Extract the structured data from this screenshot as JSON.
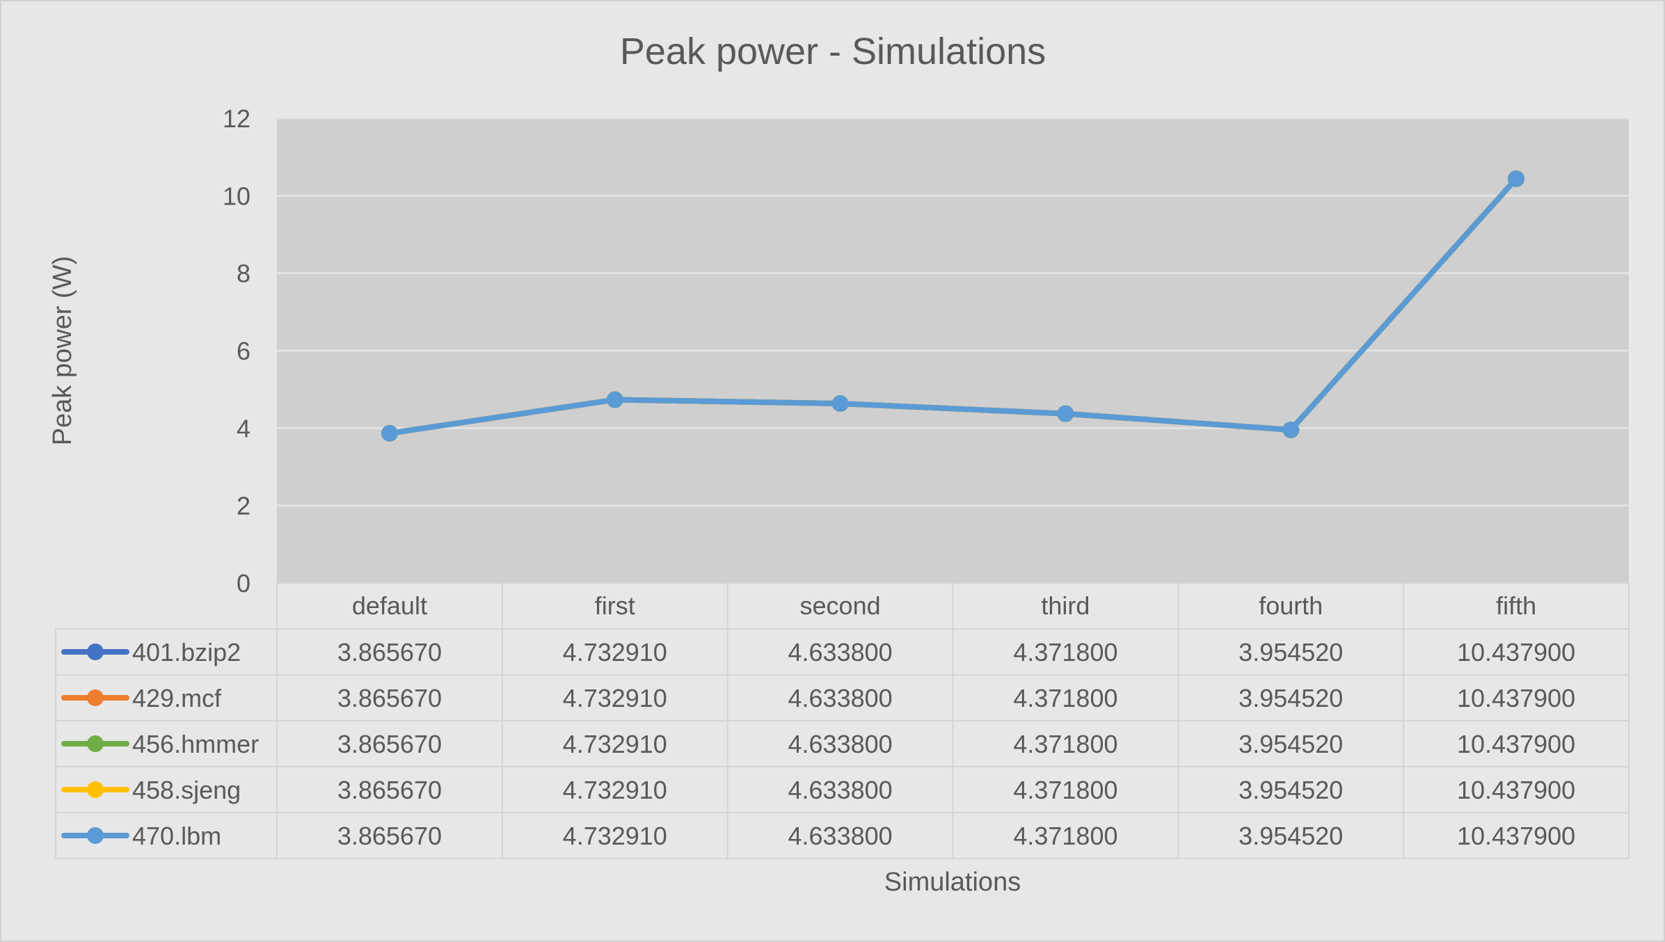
{
  "chart_data": {
    "type": "line",
    "title": "Peak power - Simulations",
    "xlabel": "Simulations",
    "ylabel": "Peak power (W)",
    "ylim": [
      0,
      12
    ],
    "yticks": [
      0,
      2,
      4,
      6,
      8,
      10,
      12
    ],
    "grid": true,
    "legend": "data-table-bottom",
    "categories": [
      "default",
      "first",
      "second",
      "third",
      "fourth",
      "fifth"
    ],
    "series": [
      {
        "name": "401.bzip2",
        "color": "#4472c4",
        "values": [
          3.86567,
          4.73291,
          4.6338,
          4.3718,
          3.95452,
          10.4379
        ],
        "labels": [
          "3.865670",
          "4.732910",
          "4.633800",
          "4.371800",
          "3.954520",
          "10.437900"
        ]
      },
      {
        "name": "429.mcf",
        "color": "#ed7d31",
        "values": [
          3.86567,
          4.73291,
          4.6338,
          4.3718,
          3.95452,
          10.4379
        ],
        "labels": [
          "3.865670",
          "4.732910",
          "4.633800",
          "4.371800",
          "3.954520",
          "10.437900"
        ]
      },
      {
        "name": "456.hmmer",
        "color": "#70ad47",
        "values": [
          3.86567,
          4.73291,
          4.6338,
          4.3718,
          3.95452,
          10.4379
        ],
        "labels": [
          "3.865670",
          "4.732910",
          "4.633800",
          "4.371800",
          "3.954520",
          "10.437900"
        ]
      },
      {
        "name": "458.sjeng",
        "color": "#ffc000",
        "values": [
          3.86567,
          4.73291,
          4.6338,
          4.3718,
          3.95452,
          10.4379
        ],
        "labels": [
          "3.865670",
          "4.732910",
          "4.633800",
          "4.371800",
          "3.954520",
          "10.437900"
        ]
      },
      {
        "name": "470.lbm",
        "color": "#5b9bd5",
        "values": [
          3.86567,
          4.73291,
          4.6338,
          4.3718,
          3.95452,
          10.4379
        ],
        "labels": [
          "3.865670",
          "4.732910",
          "4.633800",
          "4.371800",
          "3.954520",
          "10.437900"
        ]
      }
    ]
  }
}
